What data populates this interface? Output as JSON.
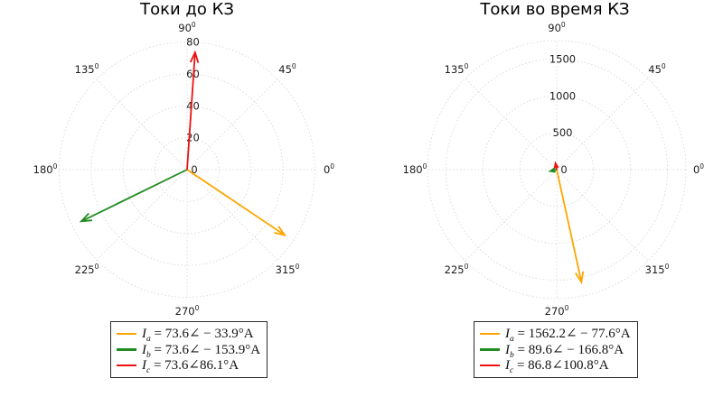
{
  "figure": {
    "background": "#ffffff",
    "grid_color": "#dcdcdc",
    "text_color": "#1a1a1a",
    "degree_mark": "0"
  },
  "chart_data": [
    {
      "type": "polar-quiver",
      "title": "Токи до КЗ",
      "angle_ticks_deg": [
        0,
        45,
        90,
        135,
        180,
        225,
        270,
        315
      ],
      "angle_tick_labels": [
        "0",
        "45",
        "90",
        "135",
        "180",
        "225",
        "270",
        "315"
      ],
      "r_ticks": [
        0,
        20,
        40,
        60,
        80
      ],
      "r_tick_labels": [
        "0",
        "20",
        "40",
        "60",
        "80"
      ],
      "r_max": 80,
      "grid": true,
      "legend_position": "below",
      "series": [
        {
          "name": "I_a",
          "symbol": "I",
          "sub": "a",
          "magnitude": 73.6,
          "angle_deg": -33.9,
          "color": "#FFA500",
          "legend_value": "= 73.6∠ − 33.9°A"
        },
        {
          "name": "I_b",
          "symbol": "I",
          "sub": "b",
          "magnitude": 73.6,
          "angle_deg": -153.9,
          "color": "#228B22",
          "legend_value": "= 73.6∠ − 153.9°A"
        },
        {
          "name": "I_c",
          "symbol": "I",
          "sub": "c",
          "magnitude": 73.6,
          "angle_deg": 86.1,
          "color": "#EE1111",
          "legend_value": "= 73.6∠86.1°A"
        }
      ]
    },
    {
      "type": "polar-quiver",
      "title": "Токи во время КЗ",
      "angle_ticks_deg": [
        0,
        45,
        90,
        135,
        180,
        225,
        270,
        315
      ],
      "angle_tick_labels": [
        "0",
        "45",
        "90",
        "135",
        "180",
        "225",
        "270",
        "315"
      ],
      "r_ticks": [
        0,
        500,
        1000,
        1500
      ],
      "r_tick_labels": [
        "0",
        "500",
        "1000",
        "1500"
      ],
      "r_max": 1750,
      "grid": true,
      "legend_position": "below",
      "series": [
        {
          "name": "I_a",
          "symbol": "I",
          "sub": "a",
          "magnitude": 1562.2,
          "angle_deg": -77.6,
          "color": "#FFA500",
          "legend_value": "= 1562.2∠ − 77.6°A"
        },
        {
          "name": "I_b",
          "symbol": "I",
          "sub": "b",
          "magnitude": 89.6,
          "angle_deg": -166.8,
          "color": "#228B22",
          "legend_value": "= 89.6∠ − 166.8°A"
        },
        {
          "name": "I_c",
          "symbol": "I",
          "sub": "c",
          "magnitude": 86.8,
          "angle_deg": 100.8,
          "color": "#EE1111",
          "legend_value": "= 86.8∠100.8°A"
        }
      ]
    }
  ]
}
